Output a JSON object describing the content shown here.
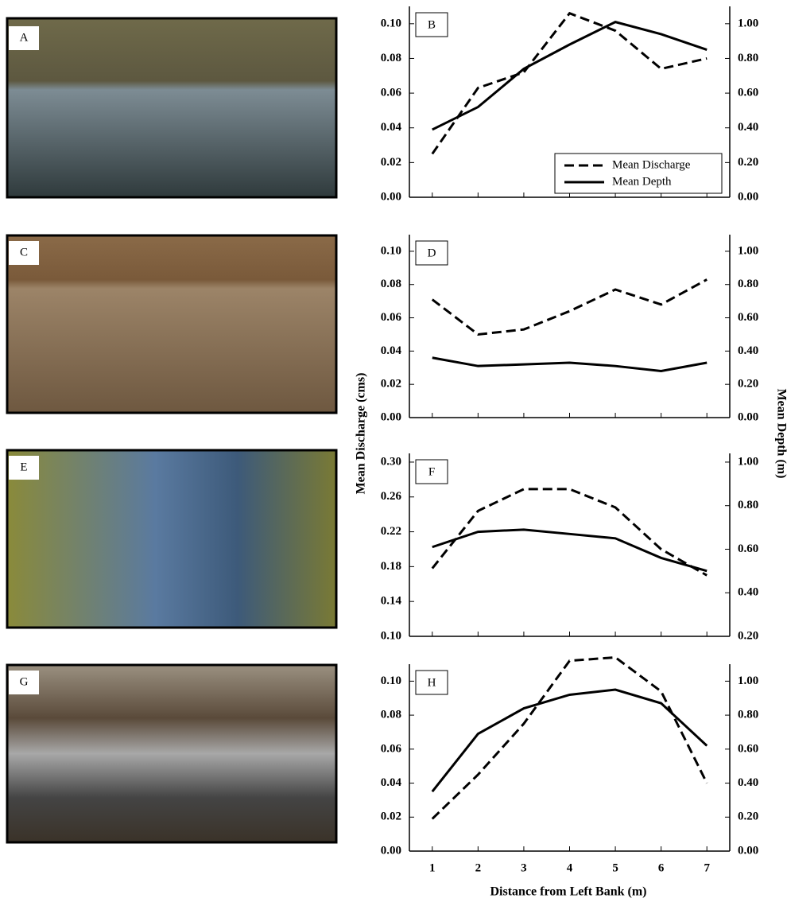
{
  "photos": [
    {
      "label": "A"
    },
    {
      "label": "C"
    },
    {
      "label": "E"
    },
    {
      "label": "G"
    }
  ],
  "ylabel": "Mean Discharge (cms)",
  "y2label": "Mean Depth (m)",
  "xlabel": "Distance from Left Bank (m)",
  "chart_data": [
    {
      "type": "line",
      "label": "B",
      "x": [
        1,
        2,
        3,
        4,
        5,
        6,
        7
      ],
      "xlim": [
        0.5,
        7.5
      ],
      "xticks": [
        1,
        2,
        3,
        4,
        5,
        6,
        7
      ],
      "xtick_labels": false,
      "ylim": [
        0,
        0.11
      ],
      "yticks": [
        {
          "value": 0,
          "label": "0.00"
        },
        {
          "value": 0.02,
          "label": "0.02"
        },
        {
          "value": 0.04,
          "label": "0.04"
        },
        {
          "value": 0.06,
          "label": "0.06"
        },
        {
          "value": 0.08,
          "label": "0.08"
        },
        {
          "value": 0.1,
          "label": "0.10"
        }
      ],
      "y2lim": [
        0,
        1.1
      ],
      "y2ticks": [
        {
          "value": 0,
          "label": "0.00"
        },
        {
          "value": 0.2,
          "label": "0.20"
        },
        {
          "value": 0.4,
          "label": "0.40"
        },
        {
          "value": 0.6,
          "label": "0.60"
        },
        {
          "value": 0.8,
          "label": "0.80"
        },
        {
          "value": 1,
          "label": "1.00"
        }
      ],
      "legend": "lower right",
      "series": [
        {
          "name": "Mean Discharge",
          "color": "#000000",
          "dashed": true,
          "values": [
            0.025,
            0.063,
            0.072,
            0.106,
            0.096,
            0.074,
            0.08
          ]
        },
        {
          "name": "Mean Depth",
          "color": "#000000",
          "dashed": false,
          "axis": "y2",
          "values": [
            0.39,
            0.52,
            0.74,
            0.88,
            1.01,
            0.94,
            0.85
          ]
        }
      ]
    },
    {
      "type": "line",
      "label": "D",
      "x": [
        1,
        2,
        3,
        4,
        5,
        6,
        7
      ],
      "xlim": [
        0.5,
        7.5
      ],
      "xticks": [
        1,
        2,
        3,
        4,
        5,
        6,
        7
      ],
      "xtick_labels": false,
      "ylim": [
        0,
        0.11
      ],
      "yticks": [
        {
          "value": 0,
          "label": "0.00"
        },
        {
          "value": 0.02,
          "label": "0.02"
        },
        {
          "value": 0.04,
          "label": "0.04"
        },
        {
          "value": 0.06,
          "label": "0.06"
        },
        {
          "value": 0.08,
          "label": "0.08"
        },
        {
          "value": 0.1,
          "label": "0.10"
        }
      ],
      "y2lim": [
        0,
        1.1
      ],
      "y2ticks": [
        {
          "value": 0,
          "label": "0.00"
        },
        {
          "value": 0.2,
          "label": "0.20"
        },
        {
          "value": 0.4,
          "label": "0.40"
        },
        {
          "value": 0.6,
          "label": "0.60"
        },
        {
          "value": 0.8,
          "label": "0.80"
        },
        {
          "value": 1,
          "label": "1.00"
        }
      ],
      "series": [
        {
          "color": "#000000",
          "dashed": true,
          "values": [
            0.071,
            0.05,
            0.053,
            0.064,
            0.077,
            0.068,
            0.083
          ]
        },
        {
          "color": "#000000",
          "dashed": false,
          "axis": "y2",
          "values": [
            0.36,
            0.31,
            0.32,
            0.33,
            0.31,
            0.28,
            0.33
          ]
        }
      ]
    },
    {
      "type": "line",
      "label": "F",
      "x": [
        1,
        2,
        3,
        4,
        5,
        6,
        7
      ],
      "xlim": [
        0.5,
        7.5
      ],
      "xticks": [
        1,
        2,
        3,
        4,
        5,
        6,
        7
      ],
      "xtick_labels": false,
      "ylim": [
        0.1,
        0.31
      ],
      "yticks": [
        {
          "value": 0.1,
          "label": "0.10"
        },
        {
          "value": 0.14,
          "label": "0.14"
        },
        {
          "value": 0.18,
          "label": "0.18"
        },
        {
          "value": 0.22,
          "label": "0.22"
        },
        {
          "value": 0.26,
          "label": "0.26"
        },
        {
          "value": 0.3,
          "label": "0.30"
        }
      ],
      "y2lim": [
        0.2,
        1.04
      ],
      "y2ticks": [
        {
          "value": 0.2,
          "label": "0.20"
        },
        {
          "value": 0.4,
          "label": "0.40"
        },
        {
          "value": 0.6,
          "label": "0.60"
        },
        {
          "value": 0.8,
          "label": "0.80"
        },
        {
          "value": 1,
          "label": "1.00"
        }
      ],
      "series": [
        {
          "color": "#000000",
          "dashed": true,
          "values": [
            0.178,
            0.244,
            0.269,
            0.269,
            0.248,
            0.2,
            0.17
          ]
        },
        {
          "color": "#000000",
          "dashed": false,
          "axis": "y2",
          "values": [
            0.61,
            0.68,
            0.69,
            0.67,
            0.65,
            0.56,
            0.5
          ]
        }
      ]
    },
    {
      "type": "line",
      "label": "H",
      "x": [
        1,
        2,
        3,
        4,
        5,
        6,
        7
      ],
      "xlim": [
        0.5,
        7.5
      ],
      "xticks": [
        1,
        2,
        3,
        4,
        5,
        6,
        7
      ],
      "xtick_labels": true,
      "ylim": [
        0,
        0.11
      ],
      "yticks": [
        {
          "value": 0,
          "label": "0.00"
        },
        {
          "value": 0.02,
          "label": "0.02"
        },
        {
          "value": 0.04,
          "label": "0.04"
        },
        {
          "value": 0.06,
          "label": "0.06"
        },
        {
          "value": 0.08,
          "label": "0.08"
        },
        {
          "value": 0.1,
          "label": "0.10"
        }
      ],
      "y2lim": [
        0,
        1.1
      ],
      "y2ticks": [
        {
          "value": 0,
          "label": "0.00"
        },
        {
          "value": 0.2,
          "label": "0.20"
        },
        {
          "value": 0.4,
          "label": "0.40"
        },
        {
          "value": 0.6,
          "label": "0.60"
        },
        {
          "value": 0.8,
          "label": "0.80"
        },
        {
          "value": 1,
          "label": "1.00"
        }
      ],
      "series": [
        {
          "color": "#000000",
          "dashed": true,
          "values": [
            0.019,
            0.045,
            0.075,
            0.112,
            0.114,
            0.094,
            0.04
          ]
        },
        {
          "color": "#000000",
          "dashed": false,
          "axis": "y2",
          "values": [
            0.35,
            0.69,
            0.84,
            0.92,
            0.95,
            0.87,
            0.62
          ]
        }
      ]
    }
  ]
}
